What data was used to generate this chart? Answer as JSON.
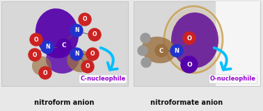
{
  "fig_width": 3.78,
  "fig_height": 1.6,
  "dpi": 100,
  "background_color": "#e8e8e8",
  "panel1_bg": "#d8d8d8",
  "panel2_bg": "#d8d8d8",
  "panel2_right_bg": "#ffffff",
  "label1": "nitroform anion",
  "label2": "nitroformate anion",
  "label_fontsize": 7.0,
  "nuc1_text": "C-nucleophile",
  "nuc2_text": "O-nucleophile",
  "nuc_color": "#9400D3",
  "nuc_fontsize": 6.0,
  "arrow_color": "#00BFFF"
}
